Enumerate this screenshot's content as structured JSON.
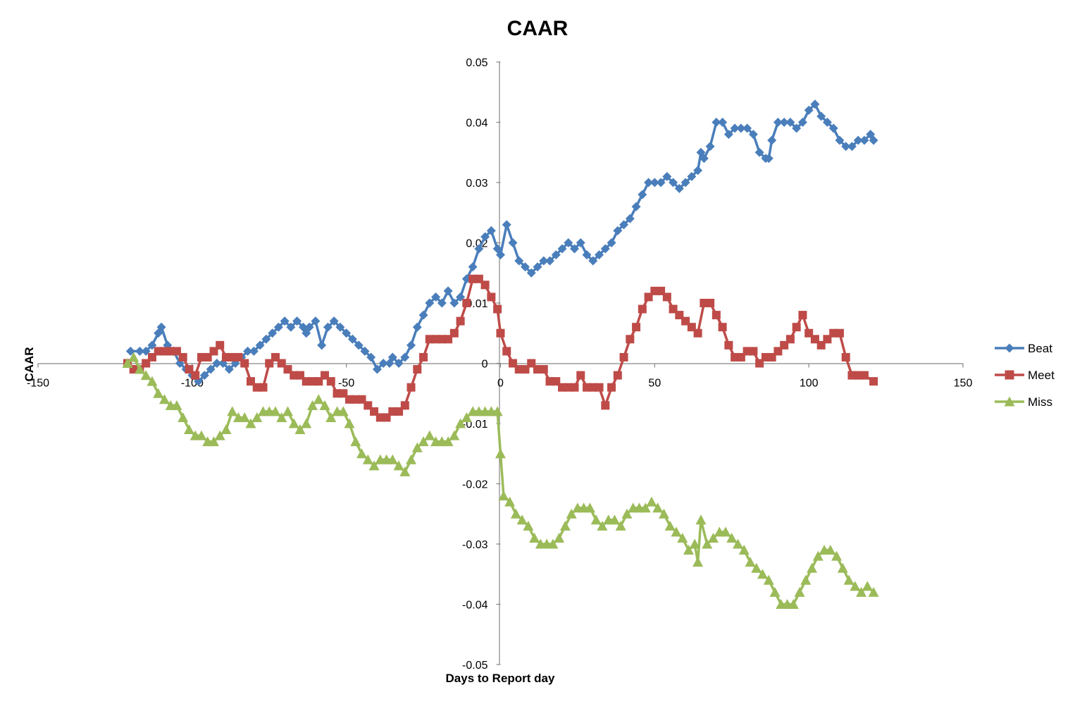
{
  "chart_data": {
    "type": "line",
    "title": "CAAR",
    "xlabel": "Days to Report day",
    "ylabel": "CAAR",
    "xlim": [
      -150,
      150
    ],
    "ylim": [
      -0.05,
      0.05
    ],
    "x_ticks": [
      -150,
      -100,
      -50,
      0,
      50,
      100,
      150
    ],
    "x_tick_labels": [
      "-150",
      "-100",
      "-50",
      "0",
      "50",
      "100",
      "150"
    ],
    "y_ticks": [
      0.05,
      0.04,
      0.03,
      0.02,
      0.01,
      0,
      -0.01,
      -0.02,
      -0.03,
      -0.04,
      -0.05
    ],
    "y_tick_labels": [
      "0.05",
      "0.04",
      "0.03",
      "0.02",
      "0.01",
      "0",
      "-0.01",
      "-0.02",
      "-0.03",
      "-0.04",
      "-0.05"
    ],
    "grid": false,
    "legend_position": "right",
    "series": [
      {
        "name": "Beat",
        "color": "#4a7ebb",
        "marker": "diamond",
        "x": [
          -120,
          -117,
          -115,
          -113,
          -111,
          -110,
          -108,
          -106,
          -104,
          -102,
          -100,
          -98,
          -96,
          -94,
          -92,
          -90,
          -88,
          -86,
          -84,
          -82,
          -80,
          -78,
          -76,
          -74,
          -72,
          -70,
          -68,
          -66,
          -64,
          -63,
          -62,
          -60,
          -58,
          -56,
          -54,
          -52,
          -50,
          -48,
          -46,
          -44,
          -42,
          -40,
          -38,
          -36,
          -35,
          -33,
          -31,
          -29,
          -27,
          -25,
          -23,
          -21,
          -19,
          -17,
          -15,
          -13,
          -11,
          -9,
          -7,
          -5,
          -3,
          -1,
          0,
          2,
          4,
          6,
          8,
          10,
          12,
          14,
          16,
          18,
          20,
          22,
          24,
          26,
          28,
          30,
          32,
          34,
          36,
          38,
          40,
          42,
          44,
          46,
          48,
          50,
          52,
          54,
          56,
          58,
          60,
          62,
          64,
          65,
          66,
          68,
          70,
          72,
          74,
          76,
          78,
          80,
          82,
          84,
          86,
          87,
          88,
          90,
          92,
          94,
          96,
          98,
          100,
          102,
          104,
          106,
          108,
          110,
          112,
          114,
          116,
          118,
          120,
          121
        ],
        "y": [
          0.002,
          0.002,
          0.002,
          0.003,
          0.005,
          0.006,
          0.003,
          0.002,
          0.0,
          -0.001,
          -0.002,
          -0.003,
          -0.002,
          -0.001,
          0.0,
          0.0,
          -0.001,
          0.0,
          0.001,
          0.002,
          0.002,
          0.003,
          0.004,
          0.005,
          0.006,
          0.007,
          0.006,
          0.007,
          0.006,
          0.005,
          0.006,
          0.007,
          0.003,
          0.006,
          0.007,
          0.006,
          0.005,
          0.004,
          0.003,
          0.002,
          0.001,
          -0.001,
          0.0,
          0.0,
          0.001,
          0.0,
          0.001,
          0.003,
          0.006,
          0.008,
          0.01,
          0.011,
          0.01,
          0.012,
          0.01,
          0.011,
          0.014,
          0.016,
          0.019,
          0.021,
          0.022,
          0.019,
          0.018,
          0.023,
          0.02,
          0.017,
          0.016,
          0.015,
          0.016,
          0.017,
          0.017,
          0.018,
          0.019,
          0.02,
          0.019,
          0.02,
          0.018,
          0.017,
          0.018,
          0.019,
          0.02,
          0.022,
          0.023,
          0.024,
          0.026,
          0.028,
          0.03,
          0.03,
          0.03,
          0.031,
          0.03,
          0.029,
          0.03,
          0.031,
          0.032,
          0.035,
          0.034,
          0.036,
          0.04,
          0.04,
          0.038,
          0.039,
          0.039,
          0.039,
          0.038,
          0.035,
          0.034,
          0.034,
          0.037,
          0.04,
          0.04,
          0.04,
          0.039,
          0.04,
          0.042,
          0.043,
          0.041,
          0.04,
          0.039,
          0.037,
          0.036,
          0.036,
          0.037,
          0.037,
          0.038,
          0.037
        ]
      },
      {
        "name": "Meet",
        "color": "#be4b48",
        "marker": "square",
        "x": [
          -121,
          -119,
          -117,
          -115,
          -113,
          -111,
          -109,
          -107,
          -105,
          -103,
          -101,
          -99,
          -97,
          -95,
          -93,
          -91,
          -89,
          -87,
          -85,
          -83,
          -81,
          -79,
          -77,
          -75,
          -73,
          -71,
          -69,
          -67,
          -65,
          -63,
          -61,
          -59,
          -57,
          -55,
          -53,
          -51,
          -49,
          -47,
          -45,
          -43,
          -41,
          -39,
          -37,
          -35,
          -33,
          -31,
          -29,
          -27,
          -25,
          -23,
          -21,
          -19,
          -17,
          -15,
          -13,
          -11,
          -9,
          -7,
          -5,
          -3,
          -1,
          0,
          2,
          4,
          6,
          8,
          10,
          12,
          14,
          16,
          18,
          20,
          22,
          24,
          26,
          28,
          30,
          32,
          34,
          36,
          38,
          40,
          42,
          44,
          46,
          48,
          50,
          52,
          54,
          56,
          58,
          60,
          62,
          64,
          66,
          68,
          70,
          72,
          74,
          76,
          78,
          80,
          82,
          84,
          86,
          88,
          90,
          92,
          94,
          96,
          98,
          100,
          102,
          104,
          106,
          108,
          110,
          112,
          114,
          116,
          118,
          121
        ],
        "y": [
          0.0,
          -0.001,
          -0.001,
          0.0,
          0.001,
          0.002,
          0.002,
          0.002,
          0.002,
          0.001,
          -0.001,
          -0.002,
          0.001,
          0.001,
          0.002,
          0.003,
          0.001,
          0.001,
          0.001,
          0.0,
          -0.003,
          -0.004,
          -0.004,
          0.0,
          0.001,
          0.0,
          -0.001,
          -0.002,
          -0.002,
          -0.003,
          -0.003,
          -0.003,
          -0.002,
          -0.003,
          -0.005,
          -0.005,
          -0.006,
          -0.006,
          -0.006,
          -0.007,
          -0.008,
          -0.009,
          -0.009,
          -0.008,
          -0.008,
          -0.007,
          -0.004,
          -0.001,
          0.001,
          0.004,
          0.004,
          0.004,
          0.004,
          0.005,
          0.007,
          0.01,
          0.014,
          0.014,
          0.013,
          0.011,
          0.009,
          0.005,
          0.002,
          0.0,
          -0.001,
          -0.001,
          0.0,
          -0.001,
          -0.001,
          -0.003,
          -0.003,
          -0.004,
          -0.004,
          -0.004,
          -0.002,
          -0.004,
          -0.004,
          -0.004,
          -0.007,
          -0.004,
          -0.002,
          0.001,
          0.004,
          0.006,
          0.009,
          0.011,
          0.012,
          0.012,
          0.011,
          0.009,
          0.008,
          0.007,
          0.006,
          0.005,
          0.01,
          0.01,
          0.008,
          0.006,
          0.003,
          0.001,
          0.001,
          0.002,
          0.002,
          0.0,
          0.001,
          0.001,
          0.002,
          0.003,
          0.004,
          0.006,
          0.008,
          0.005,
          0.004,
          0.003,
          0.004,
          0.005,
          0.005,
          0.001,
          -0.002,
          -0.002,
          -0.002,
          -0.003
        ]
      },
      {
        "name": "Miss",
        "color": "#9bbb59",
        "marker": "triangle",
        "x": [
          -121,
          -119,
          -117,
          -115,
          -113,
          -111,
          -109,
          -107,
          -105,
          -103,
          -101,
          -99,
          -97,
          -95,
          -93,
          -91,
          -89,
          -87,
          -85,
          -83,
          -81,
          -79,
          -77,
          -75,
          -73,
          -71,
          -69,
          -67,
          -65,
          -63,
          -61,
          -59,
          -57,
          -55,
          -53,
          -51,
          -49,
          -47,
          -45,
          -43,
          -41,
          -39,
          -37,
          -35,
          -33,
          -31,
          -29,
          -27,
          -25,
          -23,
          -21,
          -19,
          -17,
          -15,
          -13,
          -11,
          -9,
          -7,
          -5,
          -3,
          -1,
          0,
          1,
          3,
          5,
          7,
          9,
          11,
          13,
          15,
          17,
          19,
          21,
          23,
          25,
          27,
          29,
          31,
          33,
          35,
          37,
          39,
          41,
          43,
          45,
          47,
          49,
          51,
          53,
          55,
          57,
          59,
          61,
          63,
          64,
          65,
          67,
          69,
          71,
          73,
          75,
          77,
          79,
          81,
          83,
          85,
          87,
          89,
          91,
          93,
          95,
          97,
          99,
          101,
          103,
          105,
          107,
          109,
          111,
          113,
          115,
          117,
          119,
          121
        ],
        "y": [
          0.0,
          0.001,
          -0.001,
          -0.002,
          -0.003,
          -0.005,
          -0.006,
          -0.007,
          -0.007,
          -0.009,
          -0.011,
          -0.012,
          -0.012,
          -0.013,
          -0.013,
          -0.012,
          -0.011,
          -0.008,
          -0.009,
          -0.009,
          -0.01,
          -0.009,
          -0.008,
          -0.008,
          -0.008,
          -0.009,
          -0.008,
          -0.01,
          -0.011,
          -0.01,
          -0.007,
          -0.006,
          -0.007,
          -0.009,
          -0.008,
          -0.008,
          -0.01,
          -0.013,
          -0.015,
          -0.016,
          -0.017,
          -0.016,
          -0.016,
          -0.016,
          -0.017,
          -0.018,
          -0.016,
          -0.014,
          -0.013,
          -0.012,
          -0.013,
          -0.013,
          -0.013,
          -0.012,
          -0.01,
          -0.009,
          -0.008,
          -0.008,
          -0.008,
          -0.008,
          -0.008,
          -0.015,
          -0.022,
          -0.023,
          -0.025,
          -0.026,
          -0.027,
          -0.029,
          -0.03,
          -0.03,
          -0.03,
          -0.029,
          -0.027,
          -0.025,
          -0.024,
          -0.024,
          -0.024,
          -0.026,
          -0.027,
          -0.026,
          -0.026,
          -0.027,
          -0.025,
          -0.024,
          -0.024,
          -0.024,
          -0.023,
          -0.024,
          -0.025,
          -0.027,
          -0.028,
          -0.029,
          -0.031,
          -0.03,
          -0.033,
          -0.026,
          -0.03,
          -0.029,
          -0.028,
          -0.028,
          -0.029,
          -0.03,
          -0.031,
          -0.033,
          -0.034,
          -0.035,
          -0.036,
          -0.038,
          -0.04,
          -0.04,
          -0.04,
          -0.038,
          -0.036,
          -0.034,
          -0.032,
          -0.031,
          -0.031,
          -0.032,
          -0.034,
          -0.036,
          -0.037,
          -0.038,
          -0.037,
          -0.038
        ]
      }
    ]
  }
}
